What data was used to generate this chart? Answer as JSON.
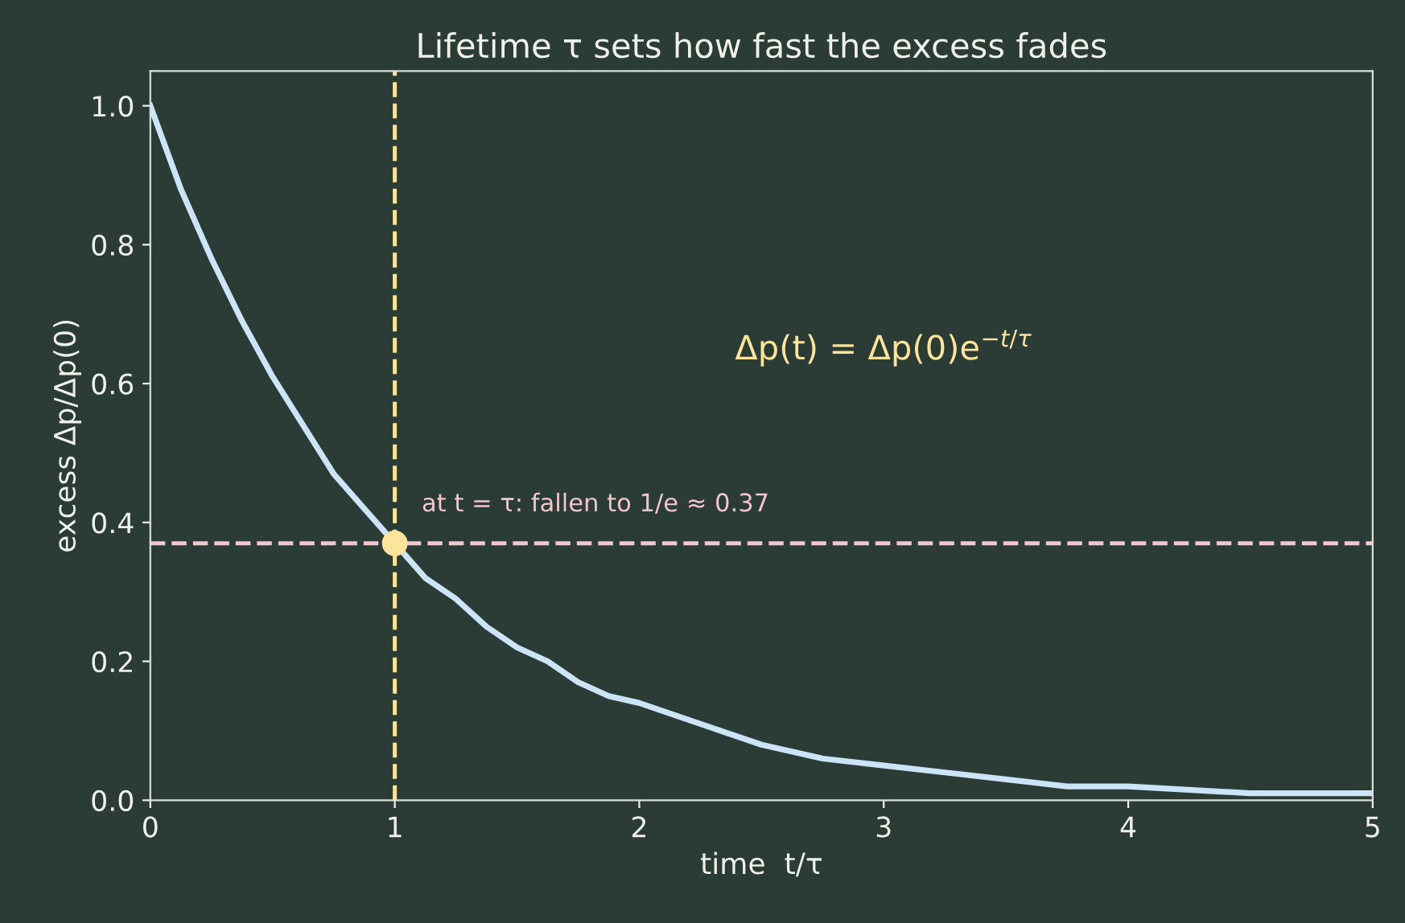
{
  "chart_data": {
    "type": "line",
    "title": "Lifetime τ sets how fast the excess fades",
    "xlabel": "time  t/τ",
    "ylabel": "excess Δp/Δp(0)",
    "series": [
      {
        "color": "#cce4f7",
        "x": [
          0,
          0.125,
          0.25,
          0.375,
          0.5,
          0.625,
          0.75,
          0.875,
          1,
          1.125,
          1.25,
          1.375,
          1.5,
          1.625,
          1.75,
          1.875,
          2,
          2.25,
          2.5,
          2.75,
          3,
          3.25,
          3.5,
          3.75,
          4,
          4.5,
          5
        ],
        "values": [
          1.0,
          0.88,
          0.78,
          0.69,
          0.61,
          0.54,
          0.47,
          0.42,
          0.37,
          0.32,
          0.29,
          0.25,
          0.22,
          0.2,
          0.17,
          0.15,
          0.14,
          0.11,
          0.08,
          0.06,
          0.05,
          0.04,
          0.03,
          0.02,
          0.02,
          0.01,
          0.01
        ]
      },
      {
        "type": "scatter",
        "color": "#fce59a",
        "x": [
          1
        ],
        "values": [
          0.37
        ]
      }
    ],
    "ref_lines": [
      {
        "axis": "x",
        "value": 1,
        "color": "#fce59a",
        "line_style": "dashed"
      },
      {
        "axis": "y",
        "value": 0.37,
        "color": "#f5c6cf",
        "line_style": "dashed"
      }
    ],
    "annotations": [
      {
        "text": "at t = τ: fallen to 1/e ≈ 0.37",
        "x": 1,
        "y": 0.37
      },
      "Δp(t) = Δp(0)e$^{−t/τ}$"
    ],
    "xlim": [
      0,
      5
    ],
    "ylim": [
      0,
      1.05
    ],
    "xticks": [
      0,
      1,
      2,
      3,
      4,
      5
    ],
    "yticks": [
      {
        "value": 0,
        "label": "0.0"
      },
      0.2,
      0.4,
      0.6,
      0.8,
      {
        "value": 1,
        "label": "1.0"
      }
    ],
    "grid": false
  }
}
